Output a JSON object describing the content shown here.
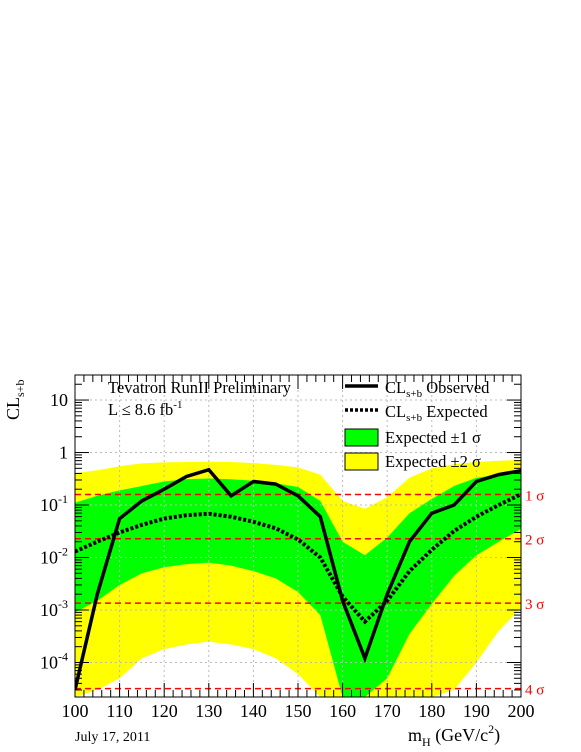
{
  "chart_data": {
    "type": "line",
    "notes": {
      "experiment": "Tevatron RunII Preliminary",
      "luminosity": "L ≤ 8.6 fb",
      "luminosity_sup": "-1",
      "date": "July 17, 2011"
    },
    "xlabel": {
      "main": "m",
      "sub": "H",
      "rest": " (GeV/c",
      "sup": "2",
      "end": ")"
    },
    "ylabel": {
      "main": "CL",
      "sub": "s+b"
    },
    "xlim": [
      100,
      200
    ],
    "ylim": [
      2.2e-05,
      30
    ],
    "yscale": "log",
    "grid": true,
    "legend_position": "top-right",
    "x_ticks": [
      "100",
      "110",
      "120",
      "130",
      "140",
      "150",
      "160",
      "170",
      "180",
      "190",
      "200"
    ],
    "y_ticks": [
      {
        "base": "10",
        "exp": "-4"
      },
      {
        "base": "10",
        "exp": "-3"
      },
      {
        "base": "10",
        "exp": "-2"
      },
      {
        "base": "10",
        "exp": "-1"
      },
      {
        "base": "1",
        "exp": ""
      },
      {
        "base": "10",
        "exp": ""
      }
    ],
    "legend": [
      {
        "main": "CL",
        "sub": "s+b",
        "rest": " Observed"
      },
      {
        "main": "CL",
        "sub": "s+b",
        "rest": " Expected"
      },
      {
        "main": "Expected ±1 σ",
        "sub": "",
        "rest": ""
      },
      {
        "main": "Expected ±2 σ",
        "sub": "",
        "rest": ""
      }
    ],
    "x": [
      100,
      105,
      110,
      115,
      120,
      125,
      130,
      135,
      140,
      145,
      150,
      155,
      160,
      165,
      170,
      175,
      180,
      185,
      190,
      195,
      200
    ],
    "series": [
      {
        "name": "CLs+b Observed",
        "values": [
          3e-05,
          0.002,
          0.055,
          0.12,
          0.2,
          0.35,
          0.47,
          0.15,
          0.28,
          0.25,
          0.15,
          0.06,
          0.0015,
          0.00012,
          0.002,
          0.02,
          0.07,
          0.1,
          0.28,
          0.38,
          0.45
        ]
      },
      {
        "name": "CLs+b Expected",
        "values": [
          0.013,
          0.02,
          0.03,
          0.042,
          0.055,
          0.064,
          0.068,
          0.06,
          0.048,
          0.036,
          0.022,
          0.01,
          0.0018,
          0.0006,
          0.0015,
          0.0055,
          0.014,
          0.032,
          0.06,
          0.1,
          0.16
        ]
      }
    ],
    "band_1sigma": {
      "upper": [
        0.11,
        0.15,
        0.19,
        0.23,
        0.28,
        0.31,
        0.32,
        0.31,
        0.29,
        0.26,
        0.22,
        0.12,
        0.02,
        0.011,
        0.024,
        0.07,
        0.13,
        0.23,
        0.33,
        0.38,
        0.43
      ],
      "lower": [
        0.0009,
        0.0015,
        0.003,
        0.005,
        0.0065,
        0.0075,
        0.008,
        0.007,
        0.0055,
        0.004,
        0.0022,
        0.0008,
        2e-05,
        2e-05,
        5e-05,
        0.00035,
        0.0013,
        0.0045,
        0.011,
        0.02,
        0.035
      ]
    },
    "band_2sigma": {
      "upper": [
        0.4,
        0.46,
        0.55,
        0.62,
        0.65,
        0.66,
        0.67,
        0.66,
        0.63,
        0.58,
        0.52,
        0.38,
        0.12,
        0.085,
        0.14,
        0.33,
        0.5,
        0.6,
        0.66,
        0.7,
        0.72
      ],
      "lower": [
        2e-05,
        3e-05,
        5e-05,
        0.00012,
        0.00018,
        0.00022,
        0.00025,
        0.00022,
        0.00018,
        0.00012,
        6e-05,
        2e-05,
        2e-05,
        2e-05,
        2e-05,
        2e-05,
        2e-05,
        3e-05,
        0.0001,
        0.0004,
        0.0011
      ]
    },
    "sigma_lines": [
      {
        "label": "1 σ",
        "value": 0.159
      },
      {
        "label": "2 σ",
        "value": 0.0228
      },
      {
        "label": "3 σ",
        "value": 0.00135
      },
      {
        "label": "4 σ",
        "value": 3.17e-05
      }
    ],
    "colors": {
      "observed": "#000000",
      "expected": "#000000",
      "band_1sigma": "#00ff00",
      "band_2sigma": "#ffff00",
      "sigma_lines": "#ff0000",
      "grid": "#bbbbbb"
    }
  }
}
